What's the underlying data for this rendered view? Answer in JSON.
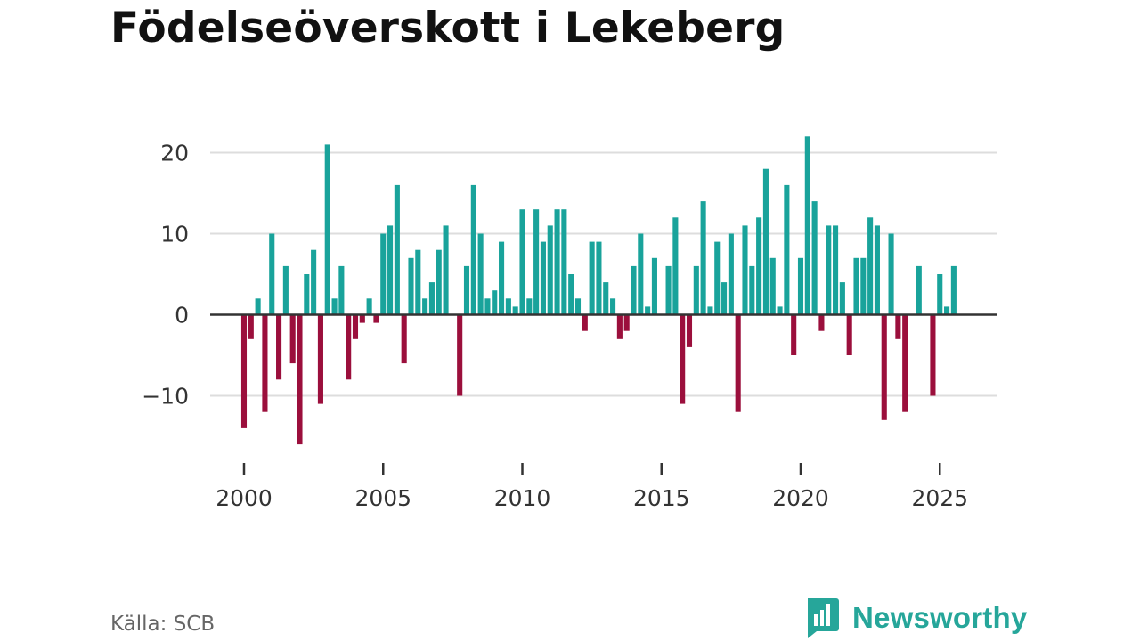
{
  "title": "Födelseöverskott i Lekeberg",
  "source": "Källa: SCB",
  "brand": {
    "name": "Newsworthy",
    "icon": "newsworthy-logo-icon"
  },
  "colors": {
    "positive": "#19a39b",
    "negative": "#9b0f3c",
    "grid": "#dddddd",
    "zero_line": "#333333",
    "axis_text": "#333333",
    "brand": "#26a69a"
  },
  "chart_data": {
    "type": "bar",
    "title": "Födelseöverskott i Lekeberg",
    "xlabel": "",
    "ylabel": "",
    "period": "quarterly",
    "x_start": 2000.0,
    "x_step": 0.25,
    "xlim": [
      1998.75,
      2027.0
    ],
    "ylim": [
      -19.5,
      25.5
    ],
    "yticks": [
      -10,
      0,
      10,
      20
    ],
    "ytick_labels": [
      "−10",
      "0",
      "10",
      "20"
    ],
    "xticks": [
      2000,
      2005,
      2010,
      2015,
      2020,
      2025
    ],
    "xtick_labels": [
      "2000",
      "2005",
      "2010",
      "2015",
      "2020",
      "2025"
    ],
    "grid": true,
    "values": [
      -14,
      -3,
      2,
      -12,
      10,
      -8,
      6,
      -6,
      -16,
      5,
      8,
      -11,
      21,
      2,
      6,
      -8,
      -3,
      -1,
      2,
      -1,
      10,
      11,
      16,
      -6,
      7,
      8,
      2,
      4,
      8,
      11,
      0,
      -10,
      6,
      16,
      10,
      2,
      3,
      9,
      2,
      1,
      13,
      2,
      13,
      9,
      11,
      13,
      13,
      5,
      2,
      -2,
      9,
      9,
      4,
      2,
      -3,
      -2,
      6,
      10,
      1,
      7,
      0,
      6,
      12,
      -11,
      -4,
      6,
      14,
      1,
      9,
      4,
      10,
      -12,
      11,
      6,
      12,
      18,
      7,
      1,
      16,
      -5,
      7,
      22,
      14,
      -2,
      11,
      11,
      4,
      -5,
      7,
      7,
      12,
      11,
      -13,
      10,
      -3,
      -12,
      0,
      6,
      0,
      -10,
      5,
      1,
      6
    ]
  }
}
